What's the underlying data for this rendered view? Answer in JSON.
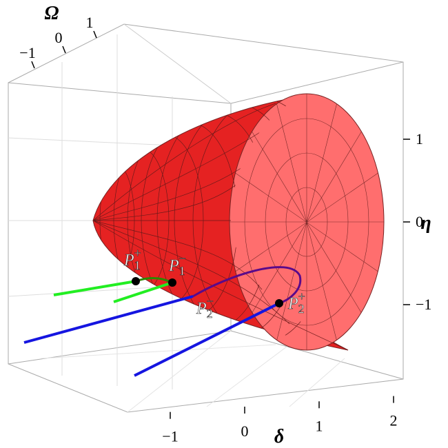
{
  "chart_data": {
    "type": "surface3d",
    "xlabel": "δ",
    "ylabel": "η",
    "zlabel": "Ω",
    "xticks": [
      {
        "value": -1,
        "label": "−1"
      },
      0,
      1,
      2
    ],
    "yticks": [
      1,
      0,
      {
        "value": -1,
        "label": "−1"
      }
    ],
    "zticks": [
      {
        "value": -1,
        "label": "−1"
      },
      0,
      1
    ],
    "annotations": [
      {
        "base": "P",
        "sub": "1",
        "sup": "+"
      },
      {
        "base": "P",
        "sub": "1",
        "sup": "−"
      },
      {
        "base": "P",
        "sub": "2",
        "sup": "−"
      },
      {
        "base": "P",
        "sub": "2",
        "sup": "+"
      }
    ]
  }
}
